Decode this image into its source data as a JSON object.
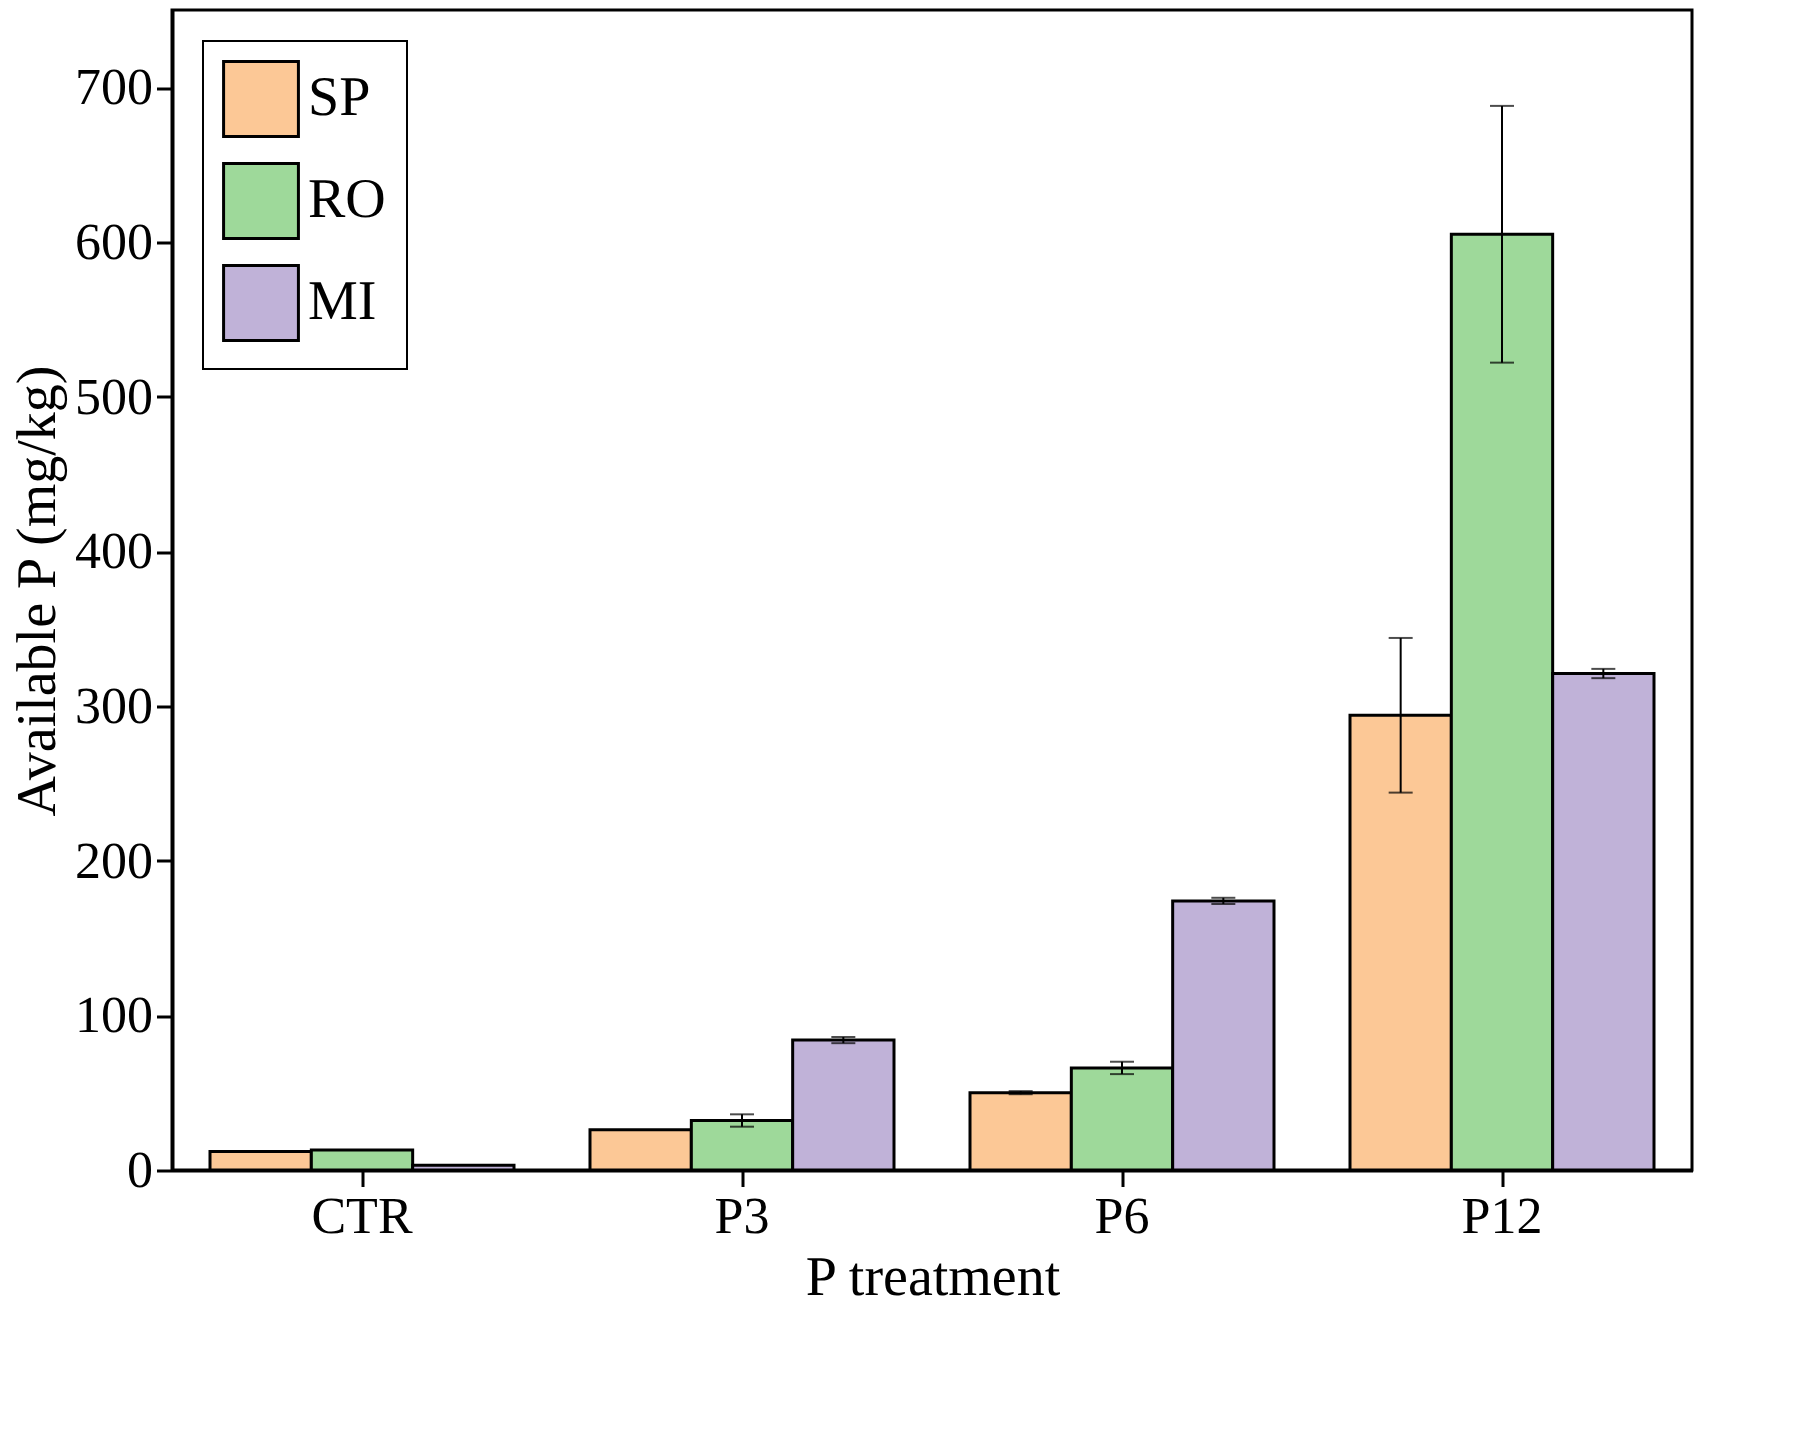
{
  "chart_data": {
    "type": "bar",
    "xlabel": "P treatment",
    "ylabel": "Available P (mg/kg)",
    "categories": [
      "CTR",
      "P3",
      "P6",
      "P12"
    ],
    "series": [
      {
        "name": "SP",
        "color": "#fcc896",
        "values": [
          12,
          26,
          50,
          294
        ],
        "errors": [
          null,
          null,
          1,
          50
        ]
      },
      {
        "name": "RO",
        "color": "#9ed99a",
        "values": [
          13,
          32,
          66,
          605
        ],
        "errors": [
          null,
          4,
          4,
          83
        ]
      },
      {
        "name": "MI",
        "color": "#c0b2d8",
        "values": [
          3,
          84,
          174,
          321
        ],
        "errors": [
          null,
          2,
          2,
          3
        ]
      }
    ],
    "ylim": [
      0,
      750
    ],
    "yticks": [
      0,
      100,
      200,
      300,
      400,
      500,
      600,
      700
    ],
    "grid": false,
    "legend": "top left"
  }
}
